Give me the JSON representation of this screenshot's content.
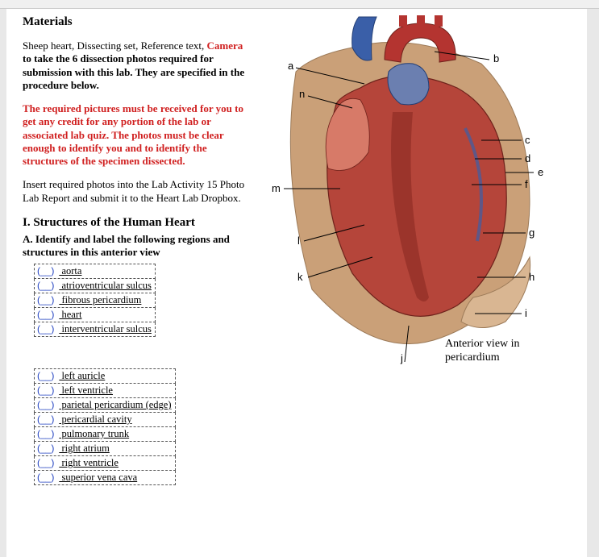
{
  "heading_materials": "Materials",
  "p1_plain_a": "Sheep heart, Dissecting set, Reference text, ",
  "p1_camera": "Camera",
  "p1_plain_b": " to take the 6 dissection photos required for submission with this lab.  They are specified in the procedure below.",
  "p2_red": "The required pictures must be received for you to get any credit for any portion of the lab or associated lab quiz. The photos must be clear enough to identify you and to identify the structures of the specimen dissected.",
  "p3": "Insert required photos into the Lab Activity 15 Photo Lab Report and submit it to the Heart Lab Dropbox.",
  "sec1": "I. Structures of the Human Heart",
  "subA": "A.  Identify and label the following regions and structures in this anterior view",
  "paren_template": "(__)",
  "table1": [
    "aorta",
    "atrioventricular sulcus",
    "fibrous pericardium",
    "heart",
    "interventricular sulcus"
  ],
  "table2": [
    "left auricle",
    "left ventricle",
    "parietal pericardium (edge)",
    "pericardial cavity",
    "pulmonary trunk",
    "right atrium",
    "right ventricle",
    "superior vena cava"
  ],
  "labels": {
    "a": "a",
    "b": "b",
    "c": "c",
    "d": "d",
    "e": "e",
    "f": "f",
    "g": "g",
    "h": "h",
    "i": "i",
    "j": "j",
    "k": "k",
    "l": "l",
    "m": "m",
    "n": "n"
  },
  "caption": "Anterior view in pericardium",
  "colors": {
    "heart_dark": "#8a2a22",
    "heart_mid": "#b5453a",
    "heart_light": "#d77a68",
    "vessel_blue": "#3a5fa8",
    "vessel_red": "#b43430",
    "pericardium": "#caa078",
    "line": "#000000",
    "red_text": "#d02020",
    "blue_text": "#2040c0"
  }
}
